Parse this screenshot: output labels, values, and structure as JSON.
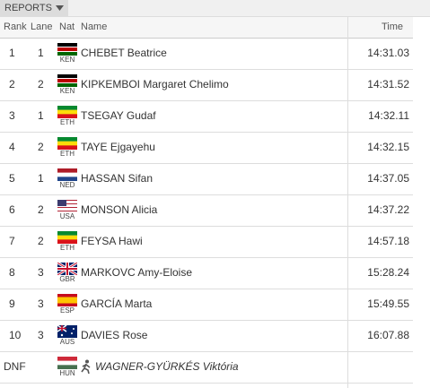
{
  "toolbar": {
    "label": "REPORTS"
  },
  "table": {
    "headers": {
      "rank": "Rank",
      "lane": "Lane",
      "nat": "Nat",
      "name": "Name",
      "time": "Time"
    },
    "rows": [
      {
        "rank": "1",
        "lane": "1",
        "nat": "KEN",
        "name": "CHEBET Beatrice",
        "time": "14:31.03"
      },
      {
        "rank": "2",
        "lane": "2",
        "nat": "KEN",
        "name": "KIPKEMBOI Margaret Chelimo",
        "time": "14:31.52"
      },
      {
        "rank": "3",
        "lane": "1",
        "nat": "ETH",
        "name": "TSEGAY Gudaf",
        "time": "14:32.11"
      },
      {
        "rank": "4",
        "lane": "2",
        "nat": "ETH",
        "name": "TAYE Ejgayehu",
        "time": "14:32.15"
      },
      {
        "rank": "5",
        "lane": "1",
        "nat": "NED",
        "name": "HASSAN Sifan",
        "time": "14:37.05"
      },
      {
        "rank": "6",
        "lane": "2",
        "nat": "USA",
        "name": "MONSON Alicia",
        "time": "14:37.22"
      },
      {
        "rank": "7",
        "lane": "2",
        "nat": "ETH",
        "name": "FEYSA Hawi",
        "time": "14:57.18"
      },
      {
        "rank": "8",
        "lane": "3",
        "nat": "GBR",
        "name": "MARKOVC Amy-Eloise",
        "time": "15:28.24"
      },
      {
        "rank": "9",
        "lane": "3",
        "nat": "ESP",
        "name": "GARCÍA Marta",
        "time": "15:49.55"
      },
      {
        "rank": "10",
        "lane": "3",
        "nat": "AUS",
        "name": "DAVIES Rose",
        "time": "16:07.88"
      },
      {
        "rank": "DNF",
        "nat": "HUN",
        "name": "WAGNER-GYÜRKÉS Viktória"
      }
    ]
  }
}
